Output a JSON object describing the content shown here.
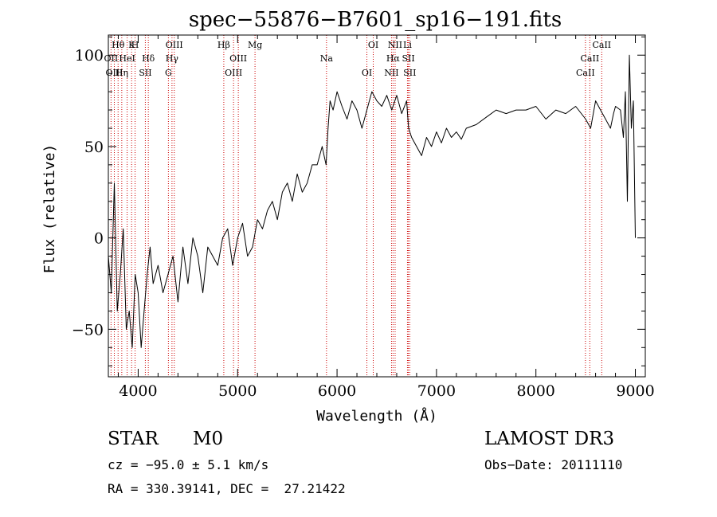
{
  "chart_data": {
    "type": "line",
    "title": "spec−55876−B7601_sp16−191.fits",
    "xlabel": "Wavelength (Å)",
    "ylabel": "Flux (relative)",
    "xlim": [
      3700,
      9100
    ],
    "ylim": [
      -76,
      111
    ],
    "xticks": [
      4000,
      5000,
      6000,
      7000,
      8000,
      9000
    ],
    "xtick_labels": [
      "4000",
      "5000",
      "6000",
      "7000",
      "8000",
      "9000"
    ],
    "yticks": [
      -50,
      0,
      50,
      100
    ],
    "ytick_labels": [
      "−50",
      "0",
      "50",
      "100"
    ],
    "series": [
      {
        "name": "flux",
        "x": [
          3700,
          3730,
          3760,
          3790,
          3820,
          3850,
          3880,
          3910,
          3940,
          3970,
          4000,
          4030,
          4060,
          4090,
          4120,
          4150,
          4200,
          4250,
          4300,
          4350,
          4400,
          4450,
          4500,
          4550,
          4600,
          4650,
          4700,
          4750,
          4800,
          4850,
          4900,
          4950,
          5000,
          5050,
          5100,
          5150,
          5200,
          5250,
          5300,
          5350,
          5400,
          5450,
          5500,
          5550,
          5600,
          5650,
          5700,
          5750,
          5800,
          5850,
          5870,
          5890,
          5910,
          5930,
          5960,
          6000,
          6050,
          6100,
          6150,
          6200,
          6250,
          6300,
          6350,
          6400,
          6450,
          6500,
          6550,
          6600,
          6650,
          6700,
          6720,
          6750,
          6800,
          6850,
          6900,
          6950,
          7000,
          7050,
          7100,
          7150,
          7200,
          7250,
          7300,
          7400,
          7500,
          7600,
          7700,
          7800,
          7900,
          8000,
          8100,
          8200,
          8300,
          8400,
          8500,
          8550,
          8600,
          8650,
          8700,
          8750,
          8780,
          8800,
          8850,
          8880,
          8900,
          8920,
          8940,
          8960,
          8980,
          9000
        ],
        "y": [
          -10,
          -30,
          30,
          -40,
          -20,
          5,
          -50,
          -40,
          -60,
          -20,
          -30,
          -60,
          -40,
          -20,
          -5,
          -25,
          -15,
          -30,
          -20,
          -10,
          -35,
          -5,
          -25,
          0,
          -10,
          -30,
          -5,
          -10,
          -15,
          0,
          5,
          -15,
          0,
          8,
          -10,
          -5,
          10,
          5,
          15,
          20,
          10,
          25,
          30,
          20,
          35,
          25,
          30,
          40,
          40,
          50,
          45,
          40,
          60,
          75,
          70,
          80,
          72,
          65,
          75,
          70,
          60,
          70,
          80,
          75,
          72,
          78,
          70,
          78,
          68,
          75,
          60,
          55,
          50,
          45,
          55,
          50,
          58,
          52,
          60,
          55,
          58,
          54,
          60,
          62,
          66,
          70,
          68,
          70,
          70,
          72,
          65,
          70,
          68,
          72,
          65,
          60,
          75,
          70,
          65,
          60,
          68,
          72,
          70,
          55,
          80,
          20,
          100,
          60,
          75,
          0
        ]
      }
    ],
    "lines": [
      {
        "label": "Hθ",
        "x": 3798
      },
      {
        "label": "OII",
        "x": 3727
      },
      {
        "label": "OIII",
        "x": 3760
      },
      {
        "label": "K",
        "x": 3934
      },
      {
        "label": "HeI",
        "x": 3889
      },
      {
        "label": "Hη",
        "x": 3835
      },
      {
        "label": "H",
        "x": 3969
      },
      {
        "label": "Hδ",
        "x": 4102
      },
      {
        "label": "SII",
        "x": 4072
      },
      {
        "label": "OIII",
        "x": 4363
      },
      {
        "label": "Hγ",
        "x": 4340
      },
      {
        "label": "G",
        "x": 4304
      },
      {
        "label": "Hβ",
        "x": 4861
      },
      {
        "label": "OIII",
        "x": 5007
      },
      {
        "label": "OIII",
        "x": 4959
      },
      {
        "label": "Mg",
        "x": 5175
      },
      {
        "label": "Na",
        "x": 5894
      },
      {
        "label": "OI",
        "x": 6300
      },
      {
        "label": "OI",
        "x": 6364
      },
      {
        "label": "Hα",
        "x": 6563
      },
      {
        "label": "NII",
        "x": 6548
      },
      {
        "label": "NII",
        "x": 6584
      },
      {
        "label": "SII",
        "x": 6717
      },
      {
        "label": "SII",
        "x": 6731
      },
      {
        "label": "Li",
        "x": 6708
      },
      {
        "label": "CaII",
        "x": 8542
      },
      {
        "label": "CaII",
        "x": 8498
      },
      {
        "label": "CaII",
        "x": 8662
      }
    ]
  },
  "info": {
    "class": "STAR",
    "subclass": "M0",
    "survey": "LAMOST DR3",
    "cz": "cz = −95.0 ± 5.1 km/s",
    "obs_date": "Obs−Date: 20111110",
    "coords": "RA = 330.39141, DEC =  27.21422"
  },
  "colors": {
    "line": "#000000",
    "marker": "#cc0000",
    "background": "#ffffff"
  }
}
